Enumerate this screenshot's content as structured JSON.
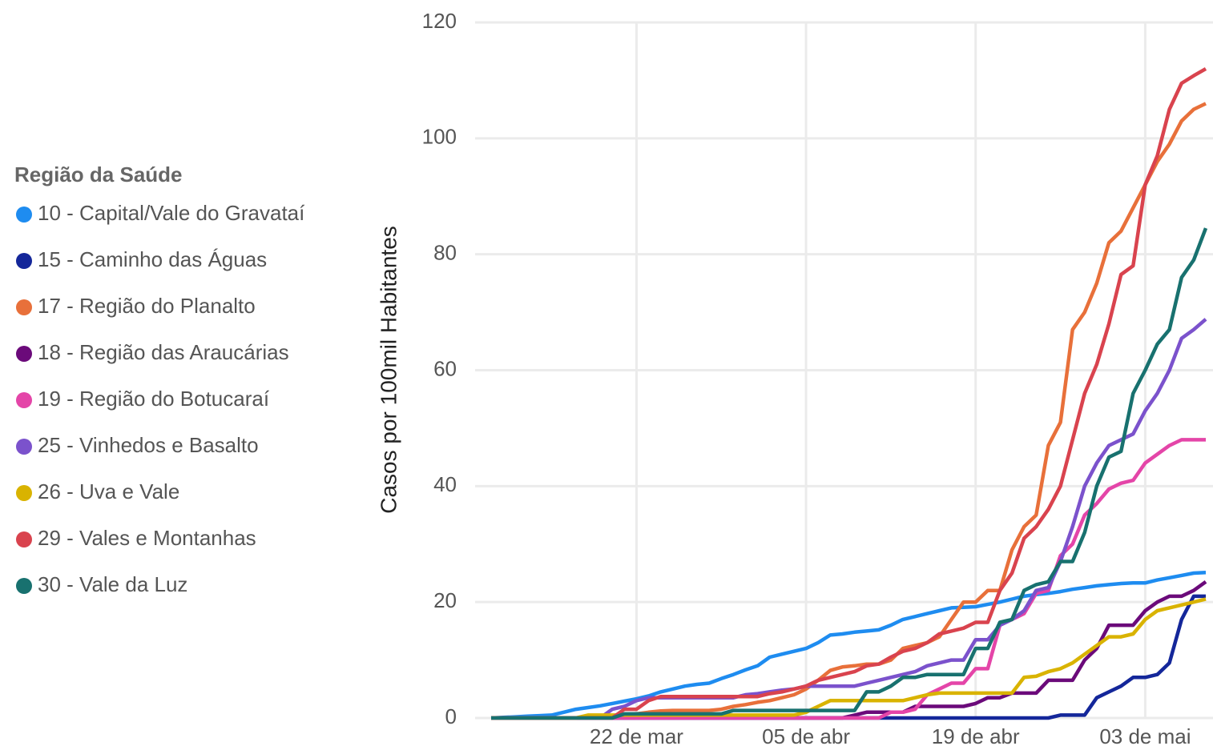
{
  "chart_data": {
    "type": "line",
    "y_label": "Casos por 100mil Habitantes",
    "legend_title": "Região da Saúde",
    "categories": [
      null,
      null,
      null,
      null,
      null,
      null,
      null,
      null,
      null,
      null,
      null,
      null,
      "22 de mar",
      null,
      null,
      null,
      null,
      null,
      null,
      null,
      null,
      null,
      null,
      null,
      null,
      null,
      "05 de abr",
      null,
      null,
      null,
      null,
      null,
      null,
      null,
      null,
      null,
      null,
      null,
      null,
      null,
      "19 de abr",
      null,
      null,
      null,
      null,
      null,
      null,
      null,
      null,
      null,
      null,
      null,
      null,
      null,
      "03 de mai",
      null,
      null,
      null,
      null,
      null
    ],
    "ylim": [
      0,
      120
    ],
    "yticks": [
      0,
      20,
      40,
      60,
      80,
      100,
      120
    ],
    "grid": true,
    "series": [
      {
        "name": "10 - Capital/Vale do Gravataí",
        "color": "#1e8cf0",
        "values": [
          0,
          0.1,
          0.2,
          0.3,
          0.4,
          0.5,
          1.0,
          1.5,
          1.8,
          2.1,
          2.5,
          2.9,
          3.3,
          3.8,
          4.5,
          5.0,
          5.5,
          5.8,
          6.0,
          6.8,
          7.5,
          8.3,
          9.0,
          10.5,
          11.0,
          11.5,
          12.0,
          13.0,
          14.3,
          14.5,
          14.8,
          15.0,
          15.2,
          16.0,
          17.0,
          17.5,
          18.0,
          18.5,
          19.0,
          19.1,
          19.2,
          19.6,
          20.0,
          20.5,
          21.0,
          21.3,
          21.5,
          21.8,
          22.2,
          22.5,
          22.8,
          23.0,
          23.2,
          23.3,
          23.3,
          23.8,
          24.2,
          24.6,
          25.0,
          25.1
        ]
      },
      {
        "name": "15 - Caminho das Águas",
        "color": "#14279a",
        "values": [
          0,
          0,
          0,
          0,
          0,
          0,
          0,
          0,
          0,
          0,
          0,
          0,
          0,
          0,
          0,
          0,
          0,
          0,
          0,
          0,
          0,
          0,
          0,
          0,
          0,
          0,
          0,
          0,
          0,
          0,
          0,
          0,
          0,
          0,
          0,
          0,
          0,
          0,
          0,
          0,
          0,
          0,
          0,
          0,
          0,
          0,
          0,
          0.5,
          0.5,
          0.5,
          3.5,
          4.5,
          5.5,
          7,
          7,
          7.5,
          9.5,
          17,
          21,
          21
        ]
      },
      {
        "name": "17 - Região do Planalto",
        "color": "#e8703a",
        "values": [
          0,
          0,
          0,
          0,
          0,
          0,
          0,
          0,
          0,
          0,
          0.3,
          0.5,
          0.7,
          1,
          1.2,
          1.3,
          1.3,
          1.3,
          1.3,
          1.5,
          2,
          2.3,
          2.7,
          3,
          3.5,
          4,
          5,
          6.5,
          8.2,
          8.8,
          9,
          9.3,
          9.3,
          10,
          12,
          12.5,
          13,
          14,
          17,
          20,
          20,
          22,
          22,
          29,
          33,
          35,
          47,
          51,
          67,
          70,
          75,
          82,
          84,
          88,
          92,
          96,
          99,
          103,
          105,
          106
        ]
      },
      {
        "name": "18 - Região das Araucárias",
        "color": "#6b0a7a",
        "values": [
          0,
          0,
          0,
          0,
          0,
          0,
          0,
          0,
          0,
          0,
          0,
          0,
          0,
          0,
          0,
          0,
          0,
          0,
          0,
          0,
          0,
          0,
          0,
          0,
          0,
          0,
          0,
          0,
          0,
          0,
          0.5,
          1,
          1,
          1,
          1,
          2,
          2,
          2,
          2,
          2,
          2.5,
          3.5,
          3.5,
          4.3,
          4.3,
          4.3,
          6.5,
          6.5,
          6.5,
          10,
          12,
          16,
          16,
          16,
          18.5,
          20,
          21,
          21,
          22,
          23.5
        ]
      },
      {
        "name": "19 - Região do Botucaraí",
        "color": "#e445a8",
        "values": [
          0,
          0,
          0,
          0,
          0,
          0,
          0,
          0,
          0,
          0,
          0,
          0,
          0,
          0,
          0,
          0,
          0,
          0,
          0,
          0,
          0,
          0,
          0,
          0,
          0,
          0,
          0,
          0,
          0,
          0,
          0,
          0,
          0,
          1,
          1,
          1.5,
          4,
          5,
          6,
          6,
          8.5,
          8.5,
          16,
          17,
          18,
          21.5,
          22,
          28,
          30,
          35,
          37,
          39.5,
          40.5,
          41,
          44,
          45.5,
          47,
          48,
          48,
          48
        ]
      },
      {
        "name": "25 - Vinhedos e Basalto",
        "color": "#7b52cc",
        "values": [
          0,
          0,
          0,
          0,
          0,
          0,
          0,
          0,
          0,
          0,
          1.5,
          2,
          3,
          3.5,
          3.5,
          3.5,
          3.5,
          3.5,
          3.5,
          3.5,
          3.5,
          4,
          4.2,
          4.5,
          4.8,
          5,
          5.5,
          5.5,
          5.5,
          5.5,
          5.5,
          6,
          6.5,
          7,
          7.5,
          8,
          9,
          9.5,
          10,
          10,
          13.5,
          13.5,
          16,
          17,
          18.5,
          22,
          22.5,
          27,
          33,
          40,
          44,
          47,
          48,
          49,
          53,
          56,
          60,
          65.5,
          67,
          68.8
        ]
      },
      {
        "name": "26 - Uva e Vale",
        "color": "#d9b300",
        "values": [
          0,
          0,
          0,
          0,
          0,
          0,
          0,
          0,
          0.5,
          0.5,
          0.5,
          0.5,
          0.5,
          0.5,
          0.5,
          0.5,
          0.5,
          0.5,
          0.5,
          0.5,
          0.5,
          0.5,
          0.5,
          0.5,
          0.5,
          0.5,
          1,
          2,
          3,
          3,
          3,
          3,
          3,
          3,
          3,
          3.5,
          4,
          4.3,
          4.3,
          4.3,
          4.3,
          4.3,
          4.3,
          4.3,
          7,
          7.2,
          8,
          8.5,
          9.5,
          11,
          12.5,
          14,
          14,
          14.5,
          17,
          18.5,
          19,
          19.5,
          20,
          20.5
        ]
      },
      {
        "name": "29 - Vales e Montanhas",
        "color": "#d9434e",
        "values": [
          0,
          0,
          0,
          0,
          0,
          0,
          0,
          0,
          0,
          0,
          0,
          1.5,
          1.5,
          3,
          3.7,
          3.7,
          3.7,
          3.7,
          3.7,
          3.7,
          3.7,
          3.7,
          3.7,
          4.2,
          4.5,
          5,
          5.5,
          6.5,
          7,
          7.5,
          8,
          9,
          9.3,
          10.5,
          11.5,
          12,
          13,
          14.5,
          15,
          15.5,
          16.5,
          16.5,
          22,
          25,
          31,
          33,
          36,
          40,
          48,
          56,
          61,
          68,
          76.5,
          78,
          92,
          97,
          105,
          109.5,
          110.8,
          112
        ]
      },
      {
        "name": "30 - Vale da Luz",
        "color": "#18716f",
        "values": [
          0,
          0,
          0,
          0,
          0,
          0,
          0,
          0,
          0,
          0,
          0,
          0.7,
          0.7,
          0.7,
          0.7,
          0.7,
          0.7,
          0.7,
          0.7,
          0.7,
          1.3,
          1.3,
          1.3,
          1.3,
          1.3,
          1.3,
          1.3,
          1.3,
          1.3,
          1.3,
          1.3,
          4.5,
          4.5,
          5.5,
          7,
          7,
          7.5,
          7.5,
          7.5,
          7.5,
          12,
          12,
          16.5,
          17,
          22,
          23,
          23.5,
          27,
          27,
          32,
          40,
          45,
          46,
          56,
          60,
          64.5,
          67,
          76,
          79,
          84.5
        ]
      }
    ]
  }
}
